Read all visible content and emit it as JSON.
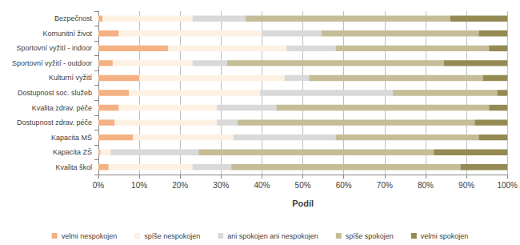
{
  "chart_data": {
    "type": "bar",
    "orientation": "horizontal",
    "stacked": true,
    "grid": true,
    "legend": "bottom",
    "x_label": "Podíl",
    "categories": [
      "Bezpečnost",
      "Komunitní život",
      "Sportovní vyžití - indoor",
      "Sportovní vyžití - outdoor",
      "Kulturní vyžití",
      "Dostupnost soc. služeb",
      "Kvalita zdrav. péče",
      "Dostupnost zdrav. péče",
      "Kapacita MŠ",
      "Kapacita ZŠ",
      "Kvalita škol"
    ],
    "series": [
      {
        "name": "velmi nespokojen",
        "color": "#f4b183",
        "values": [
          1,
          5,
          17,
          3.5,
          10,
          7.5,
          5,
          4,
          8.5,
          0.5,
          2.5
        ]
      },
      {
        "name": "spíše nespokojen",
        "color": "#fdf1e4",
        "values": [
          22,
          35,
          29,
          19.5,
          35.5,
          32,
          24,
          25,
          24.5,
          2.5,
          20.5
        ]
      },
      {
        "name": "ani spokojen ani nespokojen",
        "color": "#d9d9d9",
        "values": [
          13,
          14.5,
          12,
          8.5,
          6,
          32.5,
          14.5,
          5,
          25,
          21.5,
          9.5
        ]
      },
      {
        "name": "spíše spokojen",
        "color": "#c4bd97",
        "values": [
          50,
          38.5,
          37.5,
          53,
          42.5,
          25.5,
          52,
          58,
          35,
          57.5,
          56
        ]
      },
      {
        "name": "velmi spokojen",
        "color": "#948a54",
        "values": [
          14,
          7,
          4.5,
          15.5,
          6,
          2.5,
          4.5,
          8,
          7,
          18,
          11.5
        ]
      }
    ],
    "xlim": [
      0,
      100
    ],
    "xticks": [
      {
        "value": 0,
        "label": "0%"
      },
      {
        "value": 10,
        "label": "10%"
      },
      {
        "value": 20,
        "label": "20%"
      },
      {
        "value": 30,
        "label": "30%"
      },
      {
        "value": 40,
        "label": "40%"
      },
      {
        "value": 50,
        "label": "50%"
      },
      {
        "value": 60,
        "label": "60%"
      },
      {
        "value": 70,
        "label": "70%"
      },
      {
        "value": 80,
        "label": "80%"
      },
      {
        "value": 90,
        "label": "90%"
      },
      {
        "value": 100,
        "label": "100%"
      }
    ]
  }
}
